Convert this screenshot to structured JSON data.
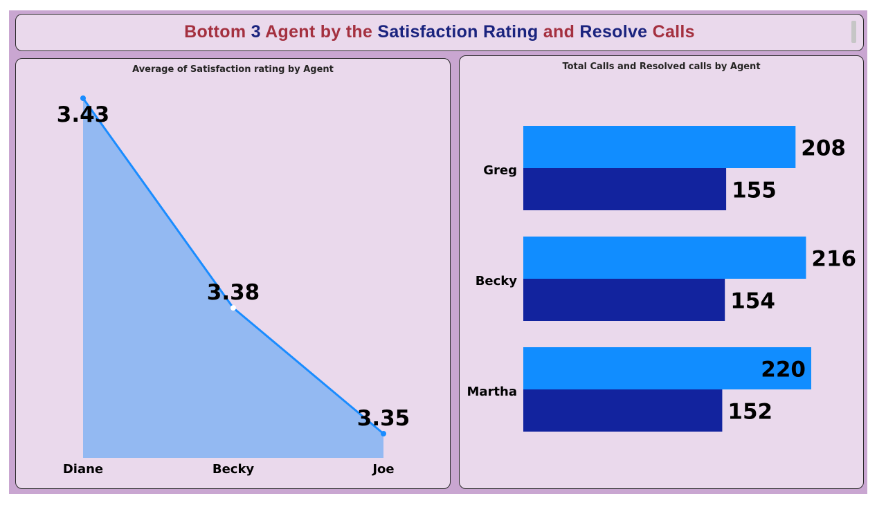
{
  "title": {
    "parts": [
      {
        "text": "Bottom ",
        "color": "#a4303f"
      },
      {
        "text": "3 ",
        "color": "#1a237e"
      },
      {
        "text": "Agent by the ",
        "color": "#a4303f"
      },
      {
        "text": "Satisfaction Rating ",
        "color": "#1a237e"
      },
      {
        "text": "and ",
        "color": "#a4303f"
      },
      {
        "text": "Resolve ",
        "color": "#1a237e"
      },
      {
        "text": "Calls",
        "color": "#a4303f"
      }
    ]
  },
  "colors": {
    "canvas": "#c9a6d1",
    "panel": "#ead9ec",
    "area_fill": "#93b9f2",
    "line": "#1a8cff",
    "total_bar": "#118dff",
    "resolved_bar": "#12239e"
  },
  "chart_data": [
    {
      "type": "area",
      "title": "Average of Satisfaction rating by Agent",
      "categories": [
        "Diane",
        "Becky",
        "Joe"
      ],
      "series": [
        {
          "values": [
            3.43,
            3.38,
            3.35
          ]
        }
      ],
      "data_labels": [
        "3.43",
        "3.38",
        "3.35"
      ],
      "ylim": [
        3.35,
        3.43
      ],
      "grid": false,
      "legend": "none"
    },
    {
      "type": "bar",
      "orientation": "horizontal",
      "title": "Total Calls and Resolved calls by Agent",
      "categories": [
        "Greg",
        "Becky",
        "Martha"
      ],
      "series": [
        {
          "values": [
            208,
            216,
            220
          ]
        },
        {
          "values": [
            155,
            154,
            152
          ]
        }
      ],
      "xlim": [
        0,
        220
      ],
      "grid": false,
      "legend": "none"
    }
  ]
}
